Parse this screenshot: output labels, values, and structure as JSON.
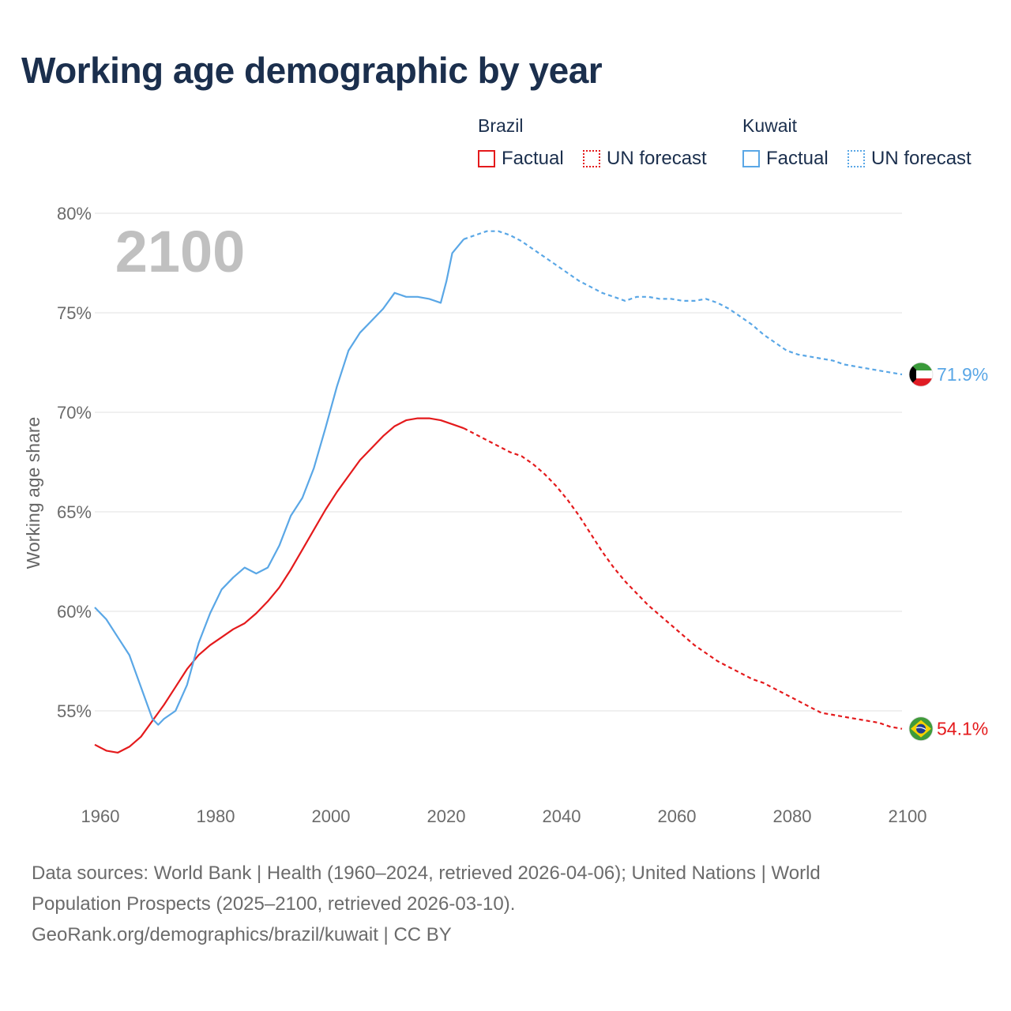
{
  "title": "Working age demographic by year",
  "legend": {
    "groups": [
      {
        "name": "Brazil",
        "factual_label": "Factual",
        "forecast_label": "UN forecast",
        "color": "#e41a1c"
      },
      {
        "name": "Kuwait",
        "factual_label": "Factual",
        "forecast_label": "UN forecast",
        "color": "#5aa7e6"
      }
    ]
  },
  "year_watermark": "2100",
  "footer": {
    "line1": "Data sources: World Bank | Health (1960–2024, retrieved 2026-04-06); United Nations | World",
    "line2": "Population Prospects (2025–2100, retrieved 2026-03-10).",
    "line3": "GeoRank.org/demographics/brazil/kuwait | CC BY"
  },
  "chart_data": {
    "type": "line",
    "title": "Working age demographic by year",
    "xlabel": "",
    "ylabel": "Working age share",
    "xlim": [
      1960,
      2100
    ],
    "ylim": [
      51,
      80
    ],
    "grid": true,
    "x_ticks": [
      1960,
      1980,
      2000,
      2020,
      2040,
      2060,
      2080,
      2100
    ],
    "x_tick_labels": [
      "1960",
      "1980",
      "2000",
      "2020",
      "2040",
      "2060",
      "2080",
      "2100"
    ],
    "y_ticks": [
      55,
      60,
      65,
      70,
      75,
      80
    ],
    "y_tick_labels": [
      "55%",
      "60%",
      "65%",
      "70%",
      "75%",
      "80%"
    ],
    "forecast_start": 2024,
    "series": [
      {
        "name": "Brazil",
        "color": "#e41a1c",
        "flag": "brazil-flag",
        "end_label": "54.1%",
        "points": [
          [
            1960,
            53.3
          ],
          [
            1962,
            53.0
          ],
          [
            1964,
            52.9
          ],
          [
            1966,
            53.2
          ],
          [
            1968,
            53.7
          ],
          [
            1970,
            54.5
          ],
          [
            1972,
            55.3
          ],
          [
            1974,
            56.2
          ],
          [
            1976,
            57.1
          ],
          [
            1978,
            57.8
          ],
          [
            1980,
            58.3
          ],
          [
            1982,
            58.7
          ],
          [
            1984,
            59.1
          ],
          [
            1986,
            59.4
          ],
          [
            1988,
            59.9
          ],
          [
            1990,
            60.5
          ],
          [
            1992,
            61.2
          ],
          [
            1994,
            62.1
          ],
          [
            1996,
            63.1
          ],
          [
            1998,
            64.1
          ],
          [
            2000,
            65.1
          ],
          [
            2002,
            66.0
          ],
          [
            2004,
            66.8
          ],
          [
            2006,
            67.6
          ],
          [
            2008,
            68.2
          ],
          [
            2010,
            68.8
          ],
          [
            2012,
            69.3
          ],
          [
            2014,
            69.6
          ],
          [
            2016,
            69.7
          ],
          [
            2018,
            69.7
          ],
          [
            2020,
            69.6
          ],
          [
            2022,
            69.4
          ],
          [
            2024,
            69.2
          ],
          [
            2026,
            68.9
          ],
          [
            2028,
            68.6
          ],
          [
            2030,
            68.3
          ],
          [
            2032,
            68.0
          ],
          [
            2034,
            67.8
          ],
          [
            2036,
            67.4
          ],
          [
            2038,
            66.9
          ],
          [
            2040,
            66.3
          ],
          [
            2042,
            65.6
          ],
          [
            2044,
            64.8
          ],
          [
            2046,
            63.9
          ],
          [
            2048,
            63.0
          ],
          [
            2050,
            62.2
          ],
          [
            2052,
            61.5
          ],
          [
            2054,
            60.9
          ],
          [
            2056,
            60.3
          ],
          [
            2058,
            59.8
          ],
          [
            2060,
            59.3
          ],
          [
            2062,
            58.8
          ],
          [
            2064,
            58.3
          ],
          [
            2066,
            57.9
          ],
          [
            2068,
            57.5
          ],
          [
            2070,
            57.2
          ],
          [
            2072,
            56.9
          ],
          [
            2074,
            56.6
          ],
          [
            2076,
            56.4
          ],
          [
            2078,
            56.1
          ],
          [
            2080,
            55.8
          ],
          [
            2082,
            55.5
          ],
          [
            2084,
            55.2
          ],
          [
            2086,
            54.9
          ],
          [
            2088,
            54.8
          ],
          [
            2090,
            54.7
          ],
          [
            2092,
            54.6
          ],
          [
            2094,
            54.5
          ],
          [
            2096,
            54.4
          ],
          [
            2098,
            54.2
          ],
          [
            2100,
            54.1
          ]
        ]
      },
      {
        "name": "Kuwait",
        "color": "#5aa7e6",
        "flag": "kuwait-flag",
        "end_label": "71.9%",
        "points": [
          [
            1960,
            60.2
          ],
          [
            1962,
            59.6
          ],
          [
            1964,
            58.7
          ],
          [
            1966,
            57.8
          ],
          [
            1968,
            56.2
          ],
          [
            1970,
            54.6
          ],
          [
            1971,
            54.3
          ],
          [
            1972,
            54.6
          ],
          [
            1974,
            55.0
          ],
          [
            1976,
            56.3
          ],
          [
            1978,
            58.4
          ],
          [
            1980,
            59.9
          ],
          [
            1982,
            61.1
          ],
          [
            1984,
            61.7
          ],
          [
            1986,
            62.2
          ],
          [
            1988,
            61.9
          ],
          [
            1990,
            62.2
          ],
          [
            1992,
            63.3
          ],
          [
            1994,
            64.8
          ],
          [
            1996,
            65.7
          ],
          [
            1998,
            67.2
          ],
          [
            2000,
            69.2
          ],
          [
            2002,
            71.3
          ],
          [
            2004,
            73.1
          ],
          [
            2006,
            74.0
          ],
          [
            2008,
            74.6
          ],
          [
            2010,
            75.2
          ],
          [
            2012,
            76.0
          ],
          [
            2014,
            75.8
          ],
          [
            2016,
            75.8
          ],
          [
            2018,
            75.7
          ],
          [
            2020,
            75.5
          ],
          [
            2021,
            76.6
          ],
          [
            2022,
            78.0
          ],
          [
            2024,
            78.7
          ],
          [
            2026,
            78.9
          ],
          [
            2028,
            79.1
          ],
          [
            2030,
            79.1
          ],
          [
            2032,
            78.9
          ],
          [
            2034,
            78.6
          ],
          [
            2036,
            78.2
          ],
          [
            2038,
            77.8
          ],
          [
            2040,
            77.4
          ],
          [
            2042,
            77.0
          ],
          [
            2044,
            76.6
          ],
          [
            2046,
            76.3
          ],
          [
            2048,
            76.0
          ],
          [
            2050,
            75.8
          ],
          [
            2052,
            75.6
          ],
          [
            2054,
            75.8
          ],
          [
            2056,
            75.8
          ],
          [
            2058,
            75.7
          ],
          [
            2060,
            75.7
          ],
          [
            2062,
            75.6
          ],
          [
            2064,
            75.6
          ],
          [
            2066,
            75.7
          ],
          [
            2068,
            75.5
          ],
          [
            2070,
            75.2
          ],
          [
            2072,
            74.8
          ],
          [
            2074,
            74.4
          ],
          [
            2076,
            73.9
          ],
          [
            2078,
            73.5
          ],
          [
            2080,
            73.1
          ],
          [
            2082,
            72.9
          ],
          [
            2084,
            72.8
          ],
          [
            2086,
            72.7
          ],
          [
            2088,
            72.6
          ],
          [
            2090,
            72.4
          ],
          [
            2092,
            72.3
          ],
          [
            2094,
            72.2
          ],
          [
            2096,
            72.1
          ],
          [
            2098,
            72.0
          ],
          [
            2100,
            71.9
          ]
        ]
      }
    ]
  }
}
